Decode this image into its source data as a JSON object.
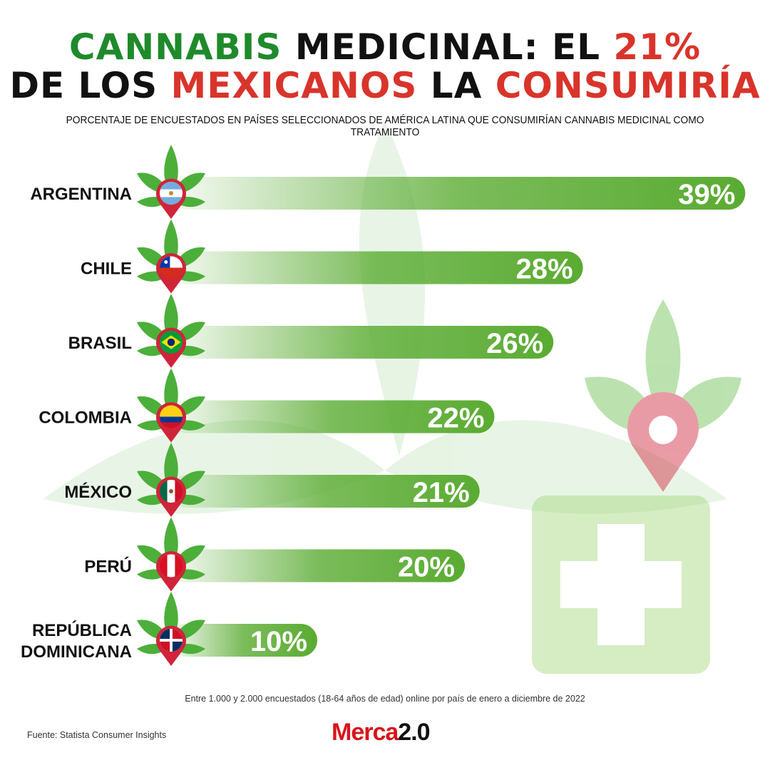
{
  "title": {
    "line1": [
      {
        "text": "CANNABIS",
        "color": "green"
      },
      {
        "text": " MEDICINAL: EL ",
        "color": "black"
      },
      {
        "text": "21%",
        "color": "red"
      }
    ],
    "line2": [
      {
        "text": "DE LOS ",
        "color": "black"
      },
      {
        "text": "MEXICANOS",
        "color": "red"
      },
      {
        "text": " LA ",
        "color": "black"
      },
      {
        "text": "CONSUMIRÍA",
        "color": "red"
      }
    ]
  },
  "subtitle": "PORCENTAJE DE ENCUESTADOS EN PAÍSES SELECCIONADOS DE AMÉRICA LATINA QUE CONSUMIRÍAN CANNABIS MEDICINAL COMO TRATAMIENTO",
  "note": "Entre 1.000 y 2.000 encuestados (18-64 años de edad) online por país de enero a diciembre de 2022",
  "source": "Fuente: Statista Consumer Insights",
  "logo": {
    "text1": "Merca",
    "text2": "2.0"
  },
  "colors": {
    "bar": "#5aab32",
    "pin": "#d0243a",
    "leaf": "#4caf3a",
    "title_green": "#1f8a2c",
    "title_red": "#d9342b"
  },
  "chart_data": {
    "type": "bar",
    "orientation": "horizontal",
    "categories": [
      "ARGENTINA",
      "CHILE",
      "BRASIL",
      "COLOMBIA",
      "MÉXICO",
      "PERÚ",
      "REPÚBLICA DOMINICANA"
    ],
    "values": [
      39,
      28,
      26,
      22,
      21,
      20,
      10
    ],
    "labels": [
      "39%",
      "28%",
      "26%",
      "22%",
      "21%",
      "20%",
      "10%"
    ],
    "unit": "%",
    "flags": [
      "argentina",
      "chile",
      "brasil",
      "colombia",
      "mexico",
      "peru",
      "republica-dominicana"
    ]
  }
}
